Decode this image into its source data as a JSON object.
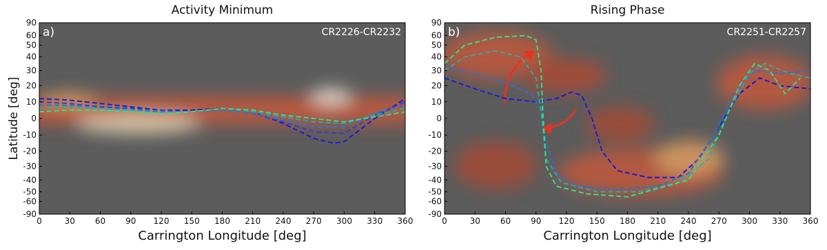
{
  "chart_data": [
    {
      "type": "line",
      "title": "Activity Minimum",
      "panel_label": "a)",
      "annotation": "CR2226-CR2232",
      "xlabel": "Carrington Longitude [deg]",
      "ylabel": "Latitude [deg]",
      "xlim": [
        0,
        360
      ],
      "xticks": [
        0,
        30,
        60,
        90,
        120,
        150,
        180,
        210,
        240,
        270,
        300,
        330,
        360
      ],
      "ylim": [
        -90,
        90
      ],
      "yticks": [
        90,
        60,
        50,
        40,
        30,
        20,
        10,
        0,
        -10,
        -20,
        -30,
        -40,
        -50,
        -60,
        -90
      ],
      "yscale": "sine",
      "series": [
        {
          "color": "#1a1adc",
          "x": [
            0,
            30,
            60,
            90,
            120,
            150,
            180,
            210,
            240,
            270,
            290,
            300,
            330,
            360
          ],
          "values": [
            12,
            11,
            9,
            7,
            5,
            5,
            6,
            4,
            -3,
            -12,
            -15,
            -14,
            0,
            12
          ]
        },
        {
          "color": "#2244d8",
          "x": [
            0,
            30,
            60,
            90,
            120,
            150,
            180,
            210,
            240,
            270,
            300,
            330,
            360
          ],
          "values": [
            10,
            9,
            7,
            6,
            5,
            4,
            5,
            3,
            -2,
            -8,
            -9,
            2,
            10
          ]
        },
        {
          "color": "#2f78c8",
          "x": [
            0,
            30,
            60,
            90,
            120,
            150,
            180,
            210,
            240,
            270,
            300,
            330,
            360
          ],
          "values": [
            8,
            8,
            6,
            5,
            4,
            4,
            5,
            3,
            -1,
            -5,
            -5,
            3,
            8
          ]
        },
        {
          "color": "#2ea8b0",
          "x": [
            0,
            30,
            60,
            90,
            120,
            150,
            180,
            210,
            240,
            270,
            300,
            330,
            360
          ],
          "values": [
            6,
            7,
            6,
            5,
            3,
            4,
            6,
            4,
            1,
            -2,
            -3,
            2,
            6
          ]
        },
        {
          "color": "#2ee08a",
          "x": [
            0,
            30,
            60,
            90,
            120,
            150,
            180,
            210,
            240,
            270,
            300,
            330,
            360
          ],
          "values": [
            4,
            5,
            5,
            4,
            3,
            4,
            6,
            5,
            2,
            0,
            -2,
            1,
            4
          ]
        }
      ]
    },
    {
      "type": "line",
      "title": "Rising Phase",
      "panel_label": "b)",
      "annotation": "CR2251-CR2257",
      "xlabel": "Carrington Longitude [deg]",
      "ylabel": "Latitude [deg]",
      "xlim": [
        0,
        360
      ],
      "xticks": [
        0,
        30,
        60,
        90,
        120,
        150,
        180,
        210,
        240,
        270,
        300,
        330,
        360
      ],
      "ylim": [
        -90,
        90
      ],
      "yticks": [
        90,
        60,
        50,
        40,
        30,
        20,
        10,
        0,
        -10,
        -20,
        -30,
        -40,
        -50,
        -60,
        -90
      ],
      "yscale": "sine",
      "series": [
        {
          "color": "#1a1adc",
          "x": [
            0,
            30,
            60,
            90,
            110,
            125,
            135,
            145,
            155,
            170,
            200,
            230,
            250,
            270,
            290,
            310,
            330,
            360
          ],
          "values": [
            25,
            18,
            12,
            10,
            12,
            16,
            14,
            0,
            -20,
            -33,
            -38,
            -38,
            -25,
            -5,
            15,
            25,
            20,
            18
          ]
        },
        {
          "color": "#2f6ed0",
          "x": [
            0,
            30,
            60,
            85,
            95,
            100,
            110,
            130,
            170,
            210,
            240,
            265,
            285,
            305,
            330,
            360
          ],
          "values": [
            32,
            28,
            22,
            15,
            5,
            -15,
            -35,
            -45,
            -48,
            -45,
            -35,
            -10,
            15,
            30,
            28,
            30
          ]
        },
        {
          "color": "#2ea8b0",
          "x": [
            0,
            20,
            50,
            75,
            90,
            95,
            100,
            115,
            150,
            190,
            230,
            260,
            280,
            300,
            315,
            340,
            360
          ],
          "values": [
            30,
            40,
            45,
            40,
            25,
            5,
            -25,
            -42,
            -50,
            -50,
            -42,
            -25,
            5,
            28,
            35,
            28,
            25
          ]
        },
        {
          "color": "#2ee08a",
          "x": [
            0,
            20,
            50,
            80,
            90,
            95,
            97,
            100,
            110,
            140,
            180,
            240,
            270,
            290,
            305,
            320,
            335,
            350
          ],
          "values": [
            35,
            50,
            58,
            60,
            55,
            30,
            0,
            -30,
            -45,
            -52,
            -55,
            -40,
            -10,
            20,
            35,
            30,
            15,
            25
          ]
        }
      ]
    }
  ]
}
